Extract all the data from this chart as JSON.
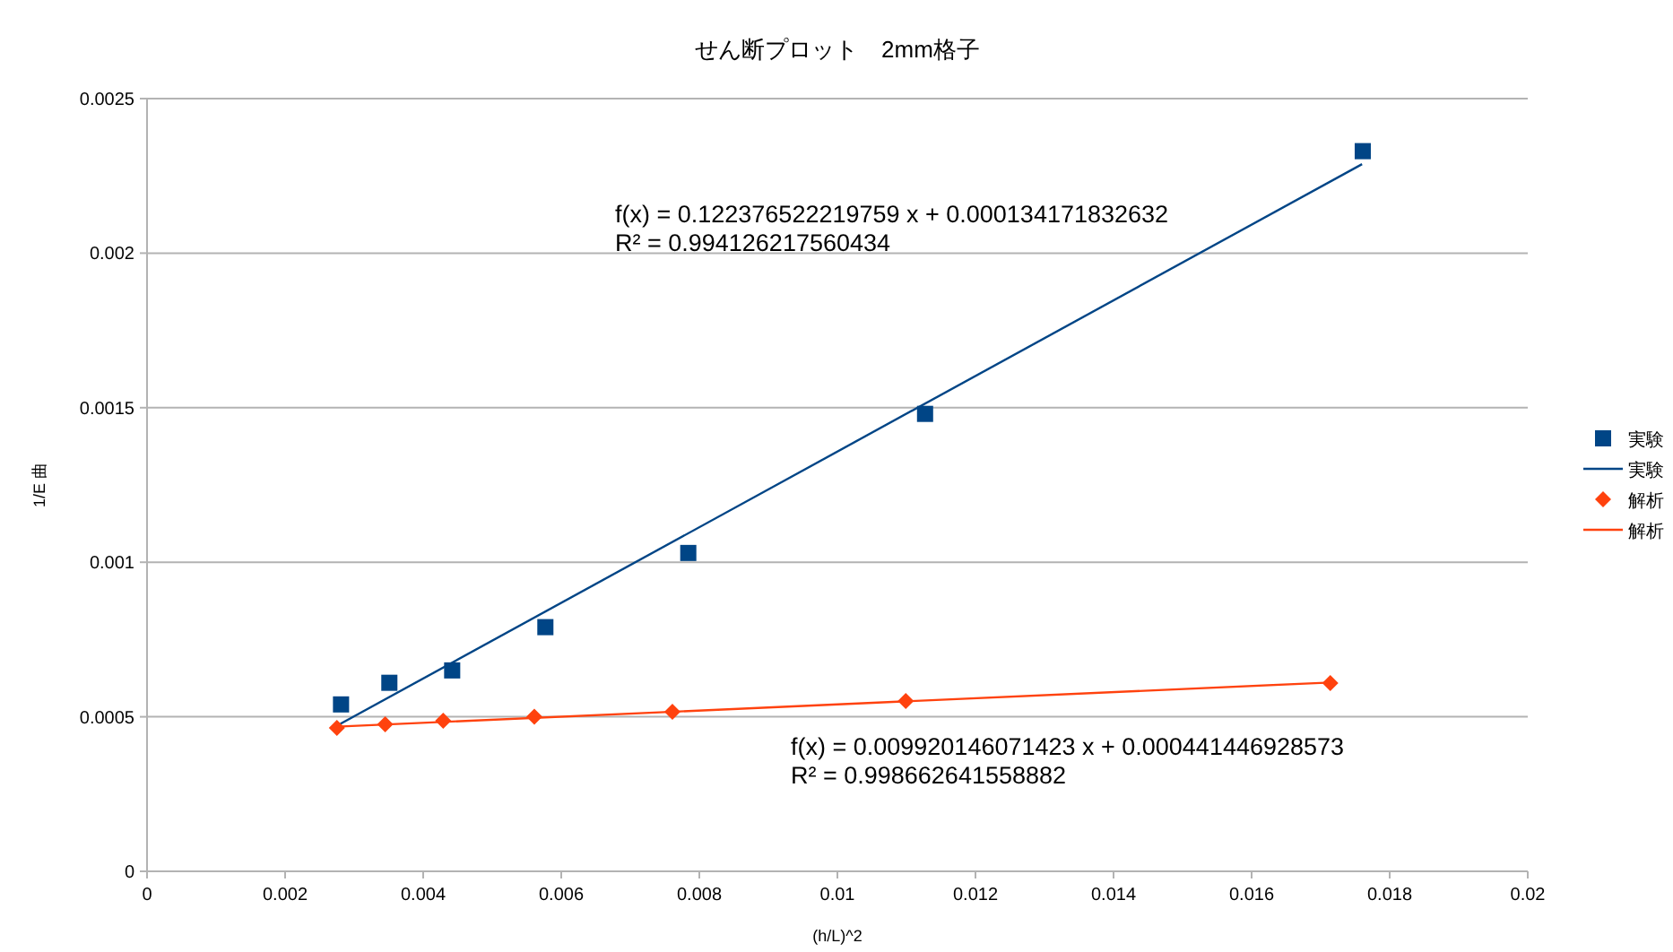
{
  "chart_data": {
    "type": "scatter",
    "title": "せん断プロット　2mm格子",
    "xlabel": "(h/L)^2",
    "ylabel": "1/E 曲",
    "xlim": [
      0,
      0.02
    ],
    "xticks": [
      0,
      0.002,
      0.004,
      0.006,
      0.008,
      0.01,
      0.012,
      0.014,
      0.016,
      0.018,
      0.02
    ],
    "ylim": [
      0,
      0.0025
    ],
    "yticks": [
      0,
      0.0005,
      0.001,
      0.0015,
      0.002,
      0.0025
    ],
    "grid": "y",
    "legend": "right",
    "series": [
      {
        "name": "実験",
        "marker": "square",
        "color": "#004586",
        "x": [
          0.00281,
          0.00351,
          0.00442,
          0.00577,
          0.00784,
          0.01127,
          0.01761
        ],
        "values": [
          0.00054,
          0.00061,
          0.00065,
          0.00079,
          0.00103,
          0.00148,
          0.00233
        ]
      },
      {
        "name": "実験",
        "type": "line",
        "marker": "none",
        "line_style": "solid",
        "color": "#004586",
        "x": [
          0.0028,
          0.0176
        ],
        "values": [
          0.000477,
          0.002288
        ]
      },
      {
        "name": "解析",
        "marker": "diamond",
        "color": "#ff420e",
        "x": [
          0.00275,
          0.00345,
          0.00429,
          0.00561,
          0.00761,
          0.01099,
          0.01714
        ],
        "values": [
          0.000464,
          0.000476,
          0.000487,
          0.0005,
          0.000516,
          0.000551,
          0.000609
        ]
      },
      {
        "name": "解析",
        "type": "line",
        "marker": "none",
        "line_style": "solid",
        "color": "#ff420e",
        "x": [
          0.00275,
          0.01714
        ],
        "values": [
          0.000468,
          0.000611
        ]
      }
    ],
    "annotations": [
      "f(x) = 0.122376522219759 x + 0.000134171832632\nR² = 0.994126217560434",
      "f(x) = 0.009920146071423 x + 0.000441446928573\nR² = 0.998662641558882"
    ]
  }
}
